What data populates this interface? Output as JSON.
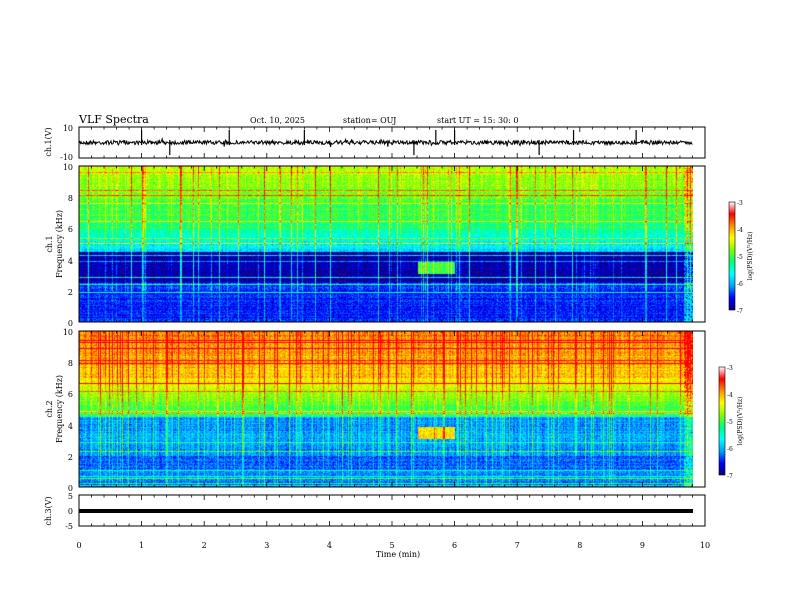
{
  "header": {
    "title": "VLF Spectra",
    "date": "Oct. 10, 2025",
    "station": "station= OUJ",
    "start": "start UT = 15: 30: 0"
  },
  "colors": {
    "colormap": [
      "#7a0060",
      "#000080",
      "#0000ff",
      "#00a0ff",
      "#00ffff",
      "#00ff80",
      "#80ff00",
      "#ffff00",
      "#ff9000",
      "#ff0000",
      "#ffffff"
    ]
  },
  "chart_data": [
    {
      "type": "line",
      "name": "ch1",
      "ylabel": "ch.1(V)",
      "ylim": [
        -10,
        10
      ],
      "y_ticks": [
        "10",
        "-10"
      ],
      "xlim": [
        0,
        10
      ],
      "baseline": 0,
      "spikes_min": [
        1.0,
        1.45,
        2.4,
        3.6,
        5.35,
        5.7,
        6.0,
        7.35,
        7.9,
        8.9
      ]
    },
    {
      "type": "heatmap",
      "name": "ch1-spectrogram",
      "ylabel": "ch.1\nFrequency (kHz)",
      "ylim": [
        0,
        10
      ],
      "y_ticks": [
        "10",
        "8",
        "6",
        "4",
        "2",
        "0"
      ],
      "xlim": [
        0,
        10
      ],
      "cbar_label": "log(PSD)(V²/Hz)",
      "cbar_range": [
        -7,
        -3
      ],
      "cbar_ticks": [
        "-3",
        "-4",
        "-5",
        "-6",
        "-7"
      ],
      "event_band_khz": [
        3.2,
        3.8
      ],
      "event_time_min": [
        5.4,
        6.0
      ]
    },
    {
      "type": "heatmap",
      "name": "ch2-spectrogram",
      "ylabel": "ch.2\nFrequency (kHz)",
      "ylim": [
        0,
        10
      ],
      "y_ticks": [
        "10",
        "8",
        "6",
        "4",
        "2",
        "0"
      ],
      "xlim": [
        0,
        10
      ],
      "cbar_label": "log(PSD)(V²/Hz)",
      "cbar_range": [
        -7,
        -3
      ],
      "cbar_ticks": [
        "-3",
        "-4",
        "-5",
        "-6",
        "-7"
      ],
      "event_band_khz": [
        3.2,
        3.8
      ],
      "event_time_min": [
        5.4,
        6.0
      ]
    },
    {
      "type": "line",
      "name": "ch3",
      "ylabel": "ch.3(V)",
      "ylim": [
        -5,
        5
      ],
      "y_ticks": [
        "5",
        "0",
        "-5"
      ],
      "xlim": [
        0,
        10
      ],
      "baseline": 0
    }
  ],
  "xaxis": {
    "label": "Time (min)",
    "ticks": [
      "0",
      "1",
      "2",
      "3",
      "4",
      "5",
      "6",
      "7",
      "8",
      "9",
      "10"
    ],
    "data_end_min": 9.8
  }
}
